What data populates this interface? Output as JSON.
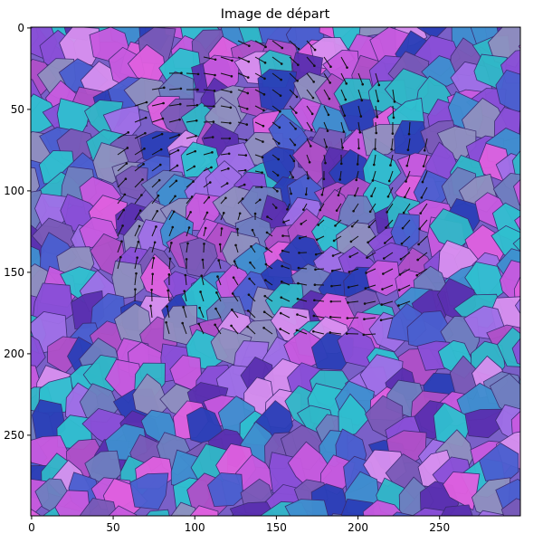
{
  "chart_data": {
    "type": "image",
    "title": "Image de départ",
    "xlim": [
      -0.5,
      299.5
    ],
    "ylim": [
      299.5,
      -0.5
    ],
    "xticks": [
      0,
      50,
      100,
      150,
      200,
      250
    ],
    "yticks": [
      0,
      50,
      100,
      150,
      200,
      250
    ]
  }
}
